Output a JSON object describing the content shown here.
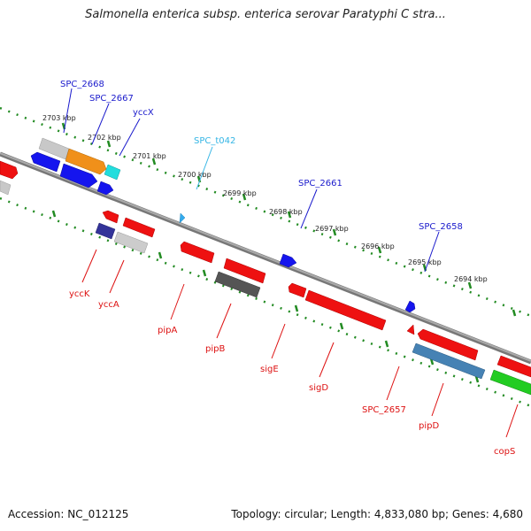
{
  "title": "Salmonella enterica subsp. enterica serovar Paratyphi C stra...",
  "footer": {
    "accession": "Accession: NC_012125",
    "summary": "Topology: circular; Length: 4,833,080 bp; Genes: 4,680"
  },
  "ruler": [
    {
      "label": "2703 kbp"
    },
    {
      "label": "2702 kbp"
    },
    {
      "label": "2701 kbp"
    },
    {
      "label": "2700 kbp"
    },
    {
      "label": "2699 kbp"
    },
    {
      "label": "2698 kbp"
    },
    {
      "label": "2697 kbp"
    },
    {
      "label": "2696 kbp"
    },
    {
      "label": "2695 kbp"
    },
    {
      "label": "2694 kbp"
    }
  ],
  "genes_top": [
    {
      "label": "SPC_2668",
      "color": "#1a1acc"
    },
    {
      "label": "SPC_2667",
      "color": "#1a1acc"
    },
    {
      "label": "yccX",
      "color": "#1a1acc"
    },
    {
      "label": "SPC_t042",
      "color": "#33b5e5"
    },
    {
      "label": "SPC_2661",
      "color": "#1a1acc"
    },
    {
      "label": "SPC_2658",
      "color": "#1a1acc"
    }
  ],
  "genes_bottom": [
    {
      "label": "yccK",
      "color": "#dd1111"
    },
    {
      "label": "yccA",
      "color": "#dd1111"
    },
    {
      "label": "pipA",
      "color": "#dd1111"
    },
    {
      "label": "pipB",
      "color": "#dd1111"
    },
    {
      "label": "sigE",
      "color": "#dd1111"
    },
    {
      "label": "sigD",
      "color": "#dd1111"
    },
    {
      "label": "SPC_2657",
      "color": "#dd1111"
    },
    {
      "label": "pipD",
      "color": "#dd1111"
    },
    {
      "label": "copS",
      "color": "#dd1111"
    }
  ]
}
